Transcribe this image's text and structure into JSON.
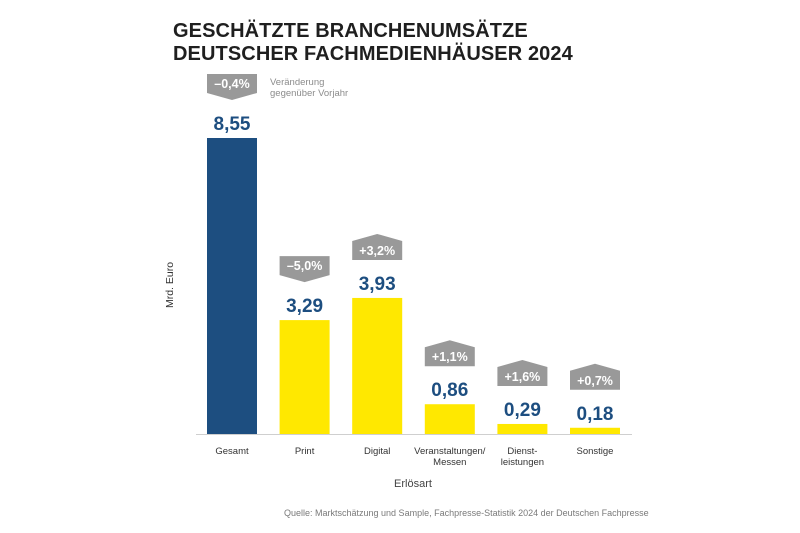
{
  "title_lines": [
    "GESCHÄTZTE BRANCHENUMSÄTZE",
    "DEUTSCHER FACHMEDIENHÄUSER 2024"
  ],
  "change_note_lines": [
    "Veränderung",
    "gegenüber Vorjahr"
  ],
  "source": "Quelle: Marktschätzung und Sample, Fachpresse-Statistik 2024 der Deutschen Fachpresse",
  "colors": {
    "gesamt": "#1d4e80",
    "parts": "#ffe800",
    "change_badge": "#999999",
    "value_text": "#1d4e80"
  },
  "chart_data": {
    "type": "bar",
    "ylabel": "Mrd. Euro",
    "xlabel": "Erlösart",
    "categories": [
      [
        "Gesamt"
      ],
      [
        "Print"
      ],
      [
        "Digital"
      ],
      [
        "Veranstaltungen/",
        "Messen"
      ],
      [
        "Dienst-",
        "leistungen"
      ],
      [
        "Sonstige"
      ]
    ],
    "values": [
      8.55,
      3.29,
      3.93,
      0.86,
      0.29,
      0.18
    ],
    "value_labels": [
      "8,55",
      "3,29",
      "3,93",
      "0,86",
      "0,29",
      "0,18"
    ],
    "changes": [
      "–0,4%",
      "–5,0%",
      "+3,2%",
      "+1,1%",
      "+1,6%",
      "+0,7%"
    ],
    "change_direction": [
      "down",
      "down",
      "up",
      "up",
      "up",
      "up"
    ],
    "grid": false,
    "legend": "none"
  }
}
